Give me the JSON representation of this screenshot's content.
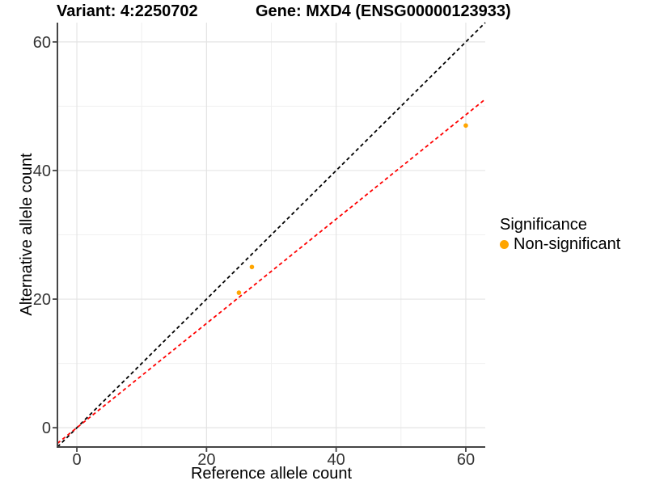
{
  "titles": {
    "variant": "Variant: 4:2250702",
    "gene": "Gene: MXD4 (ENSG00000123933)"
  },
  "colors": {
    "background": "#ffffff",
    "axis": "#454545",
    "tick_text": "#333333",
    "grid_major": "#e4e4e4",
    "grid_minor": "#f0f0f0",
    "point": "#FFA500",
    "identity_line": "#000000",
    "fit_line": "#FF0000",
    "title_text": "#000000"
  },
  "chart_data": {
    "type": "scatter",
    "variant_title": "Variant: 4:2250702",
    "gene_title": "Gene: MXD4 (ENSG00000123933)",
    "xlabel": "Reference allele count",
    "ylabel": "Alternative allele count",
    "xlim": [
      -3,
      63
    ],
    "ylim": [
      -3,
      63
    ],
    "x_ticks": [
      0,
      20,
      40,
      60
    ],
    "y_ticks": [
      0,
      20,
      40,
      60
    ],
    "x_minor_ticks": [
      10,
      30,
      50
    ],
    "y_minor_ticks": [
      10,
      30,
      50
    ],
    "grid": "major+minor",
    "series": [
      {
        "name": "Non-significant",
        "color": "#FFA500",
        "points": [
          {
            "x": 25,
            "y": 21
          },
          {
            "x": 27,
            "y": 25
          },
          {
            "x": 60,
            "y": 47
          }
        ]
      }
    ],
    "reference_lines": [
      {
        "name": "identity-line",
        "slope": 1,
        "intercept": 0,
        "color": "#000000",
        "style": "dashed"
      },
      {
        "name": "regression-line",
        "slope": 0.811,
        "intercept": 0,
        "color": "#FF0000",
        "style": "dashed"
      }
    ],
    "legend": {
      "title": "Significance",
      "position": "right",
      "items": [
        {
          "label": "Non-significant",
          "color": "#FFA500",
          "marker": "circle-icon"
        }
      ]
    }
  }
}
